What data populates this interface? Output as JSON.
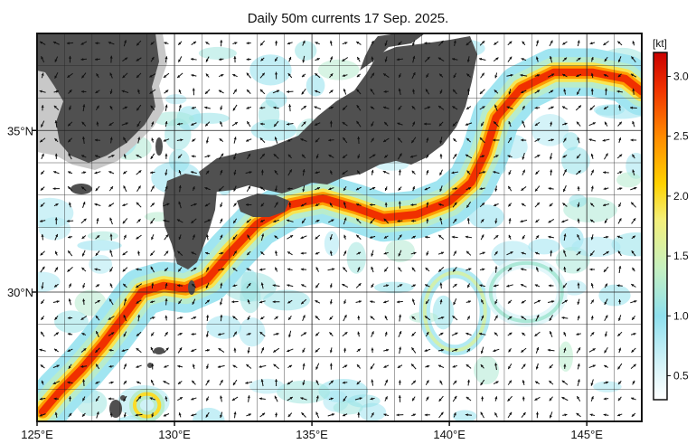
{
  "title": "Daily 50m currents 17 Sep. 2025.",
  "map": {
    "lon_range": [
      125,
      147
    ],
    "lat_range": [
      26,
      38
    ],
    "lon_ticks": [
      {
        "value": 125,
        "label": "125°E"
      },
      {
        "value": 130,
        "label": "130°E"
      },
      {
        "value": 135,
        "label": "135°E"
      },
      {
        "value": 140,
        "label": "140°E"
      },
      {
        "value": 145,
        "label": "145°E"
      }
    ],
    "lat_ticks": [
      {
        "value": 30,
        "label": "30°N"
      },
      {
        "value": 35,
        "label": "35°N"
      }
    ],
    "grid": true,
    "vector_field": "current-arrows",
    "landmasses": [
      "Korean Peninsula",
      "Japan",
      "Kyushu",
      "Ryukyu Islands"
    ]
  },
  "colorbar": {
    "unit": "[kt]",
    "range": [
      0.3,
      3.2
    ],
    "ticks": [
      {
        "value": 0.5,
        "label": "0.5"
      },
      {
        "value": 1.0,
        "label": "1.0"
      },
      {
        "value": 1.5,
        "label": "1.5"
      },
      {
        "value": 2.0,
        "label": "2.0"
      },
      {
        "value": 2.5,
        "label": "2.5"
      },
      {
        "value": 3.0,
        "label": "3.0"
      }
    ],
    "stops": [
      {
        "value": 0.3,
        "color": "#ffffff"
      },
      {
        "value": 0.6,
        "color": "#d4f3f8"
      },
      {
        "value": 1.0,
        "color": "#8fe0ee"
      },
      {
        "value": 1.4,
        "color": "#c6f0c0"
      },
      {
        "value": 1.8,
        "color": "#f3ef7a"
      },
      {
        "value": 2.1,
        "color": "#ffd200"
      },
      {
        "value": 2.5,
        "color": "#ff8a00"
      },
      {
        "value": 2.9,
        "color": "#f03000"
      },
      {
        "value": 3.2,
        "color": "#c80000"
      }
    ]
  },
  "kuroshio_path": [
    [
      125.2,
      26.3
    ],
    [
      125.8,
      26.9
    ],
    [
      126.6,
      27.6
    ],
    [
      127.4,
      28.4
    ],
    [
      128.2,
      29.3
    ],
    [
      128.8,
      30.0
    ],
    [
      129.6,
      30.2
    ],
    [
      130.4,
      30.1
    ],
    [
      131.2,
      30.4
    ],
    [
      132.0,
      31.2
    ],
    [
      133.0,
      32.1
    ],
    [
      134.2,
      32.7
    ],
    [
      135.4,
      32.9
    ],
    [
      136.6,
      32.6
    ],
    [
      137.6,
      32.3
    ],
    [
      138.8,
      32.4
    ],
    [
      140.0,
      32.8
    ],
    [
      140.8,
      33.4
    ],
    [
      141.3,
      34.3
    ],
    [
      141.7,
      35.4
    ],
    [
      142.6,
      36.3
    ],
    [
      143.8,
      36.8
    ],
    [
      145.2,
      36.8
    ],
    [
      146.4,
      36.6
    ],
    [
      147.0,
      36.2
    ]
  ],
  "eddy_rings": [
    {
      "lon": 129.0,
      "lat": 26.5,
      "rlon": 0.45,
      "rlat": 0.35,
      "speed": 2.0
    },
    {
      "lon": 140.2,
      "lat": 29.4,
      "rlon": 1.1,
      "rlat": 1.2,
      "speed": 1.5
    },
    {
      "lon": 142.8,
      "lat": 30.0,
      "rlon": 1.3,
      "rlat": 0.9,
      "speed": 1.2
    }
  ],
  "land_color": "#505050",
  "land_edge_color": "#c8c8c8",
  "ocean_color": "#ffffff"
}
